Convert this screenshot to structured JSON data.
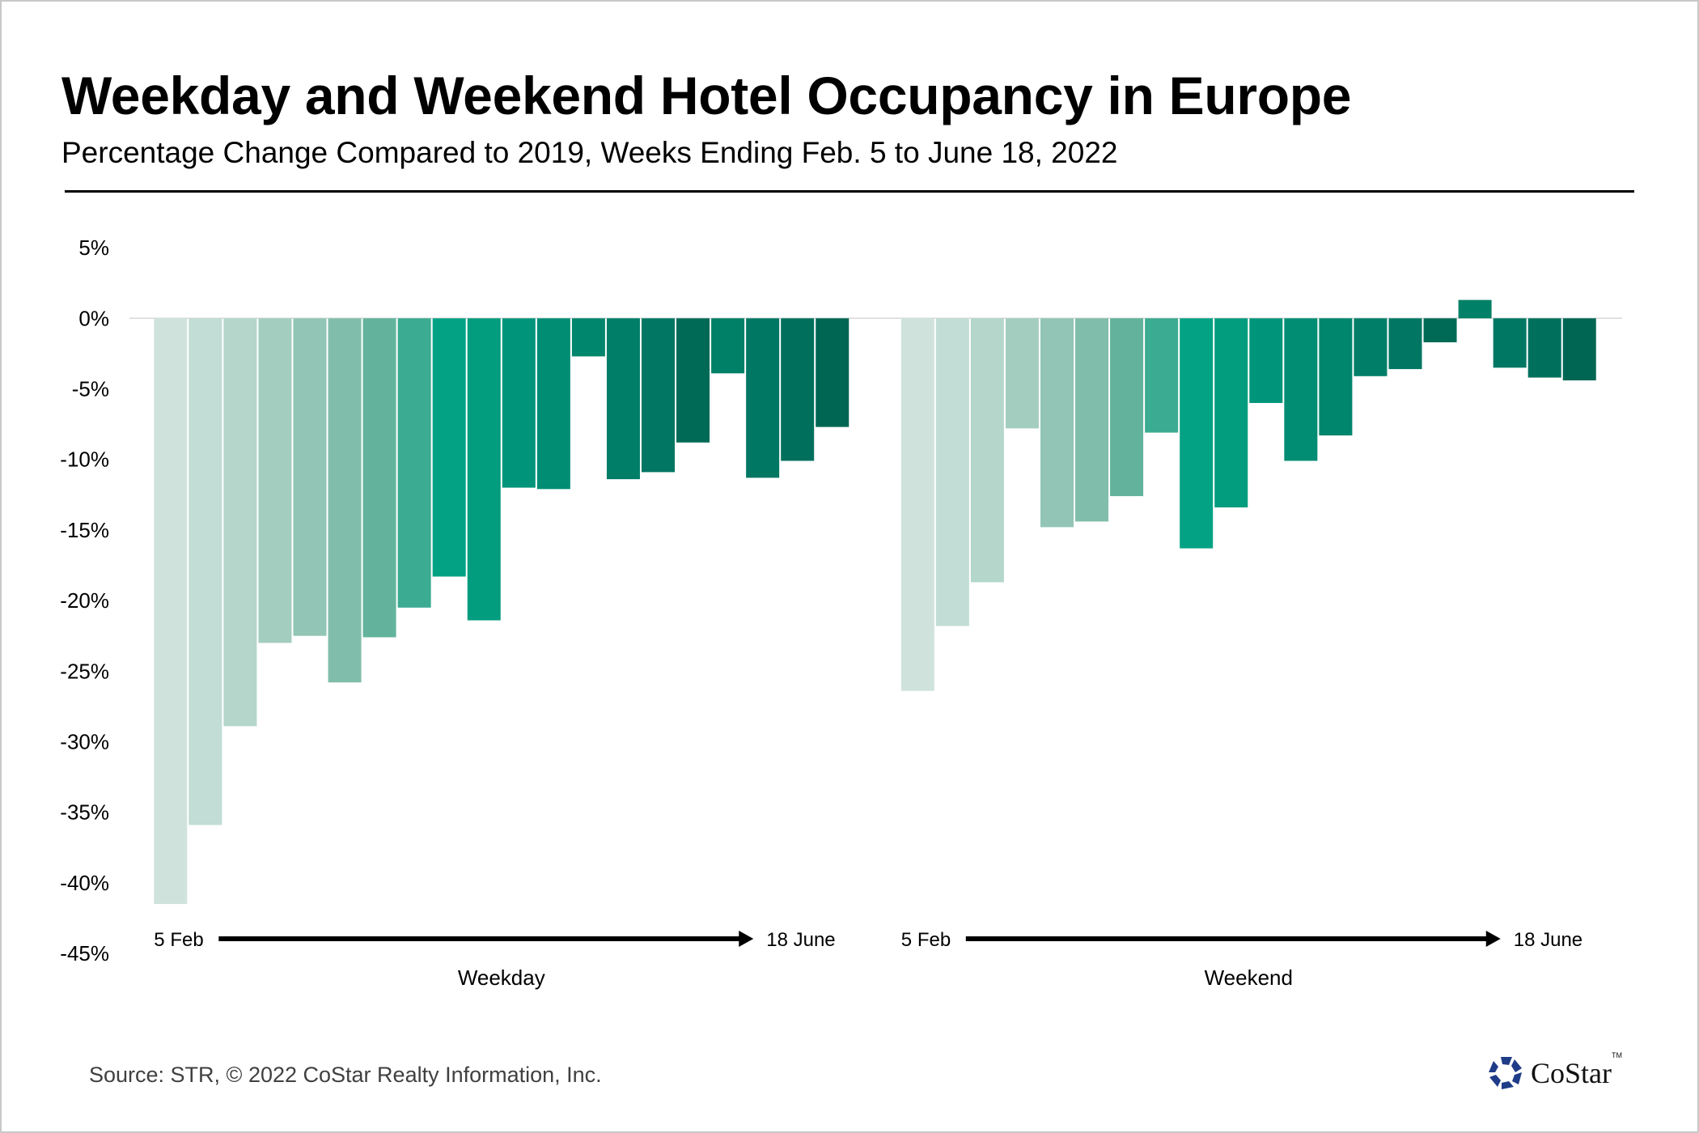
{
  "header": {
    "title": "Weekday and Weekend Hotel Occupancy in Europe",
    "subtitle": "Percentage Change Compared to 2019, Weeks Ending Feb. 5 to June 18, 2022"
  },
  "footer": {
    "source": "Source: STR, © 2022  CoStar Realty Information, Inc.",
    "logo_text": "CoStar",
    "logo_tm": "TM"
  },
  "chart_data": {
    "type": "bar",
    "title": "Weekday and Weekend Hotel Occupancy in Europe",
    "subtitle": "Percentage Change Compared to 2019, Weeks Ending Feb. 5 to June 18, 2022",
    "xlabel": "",
    "ylabel": "",
    "ylim": [
      -45,
      5
    ],
    "y_ticks": [
      5,
      0,
      -5,
      -10,
      -15,
      -20,
      -25,
      -30,
      -35,
      -40,
      -45
    ],
    "y_tick_labels": [
      "5%",
      "0%",
      "-5%",
      "-10%",
      "-15%",
      "-20%",
      "-25%",
      "-30%",
      "-35%",
      "-40%",
      "-45%"
    ],
    "grid": false,
    "legend": "none",
    "groups": [
      {
        "name": "Weekday",
        "start_label": "5 Feb",
        "end_label": "18 June",
        "values": [
          -41.5,
          -35.9,
          -28.9,
          -23.0,
          -22.5,
          -25.8,
          -22.6,
          -20.5,
          -18.3,
          -21.4,
          -12.0,
          -12.1,
          -2.7,
          -11.4,
          -10.9,
          -8.8,
          -3.9,
          -11.3,
          -10.1,
          -7.7
        ]
      },
      {
        "name": "Weekend",
        "start_label": "5 Feb",
        "end_label": "18 June",
        "values": [
          -26.4,
          -21.8,
          -18.7,
          -7.8,
          -14.8,
          -14.4,
          -12.6,
          -8.1,
          -16.3,
          -13.4,
          -6.0,
          -10.1,
          -8.3,
          -4.1,
          -3.6,
          -1.7,
          1.3,
          -3.5,
          -4.2,
          -4.4
        ]
      }
    ],
    "bar_colors": [
      "#cfe3dc",
      "#c1ddd5",
      "#b4d6cb",
      "#a3cdbf",
      "#92c5b5",
      "#80bdab",
      "#63b39c",
      "#3bab91",
      "#03a284",
      "#029c7e",
      "#00957a",
      "#008d73",
      "#00866d",
      "#007e68",
      "#007663",
      "#006a57",
      "#008066",
      "#007763",
      "#00705d",
      "#006654"
    ]
  }
}
